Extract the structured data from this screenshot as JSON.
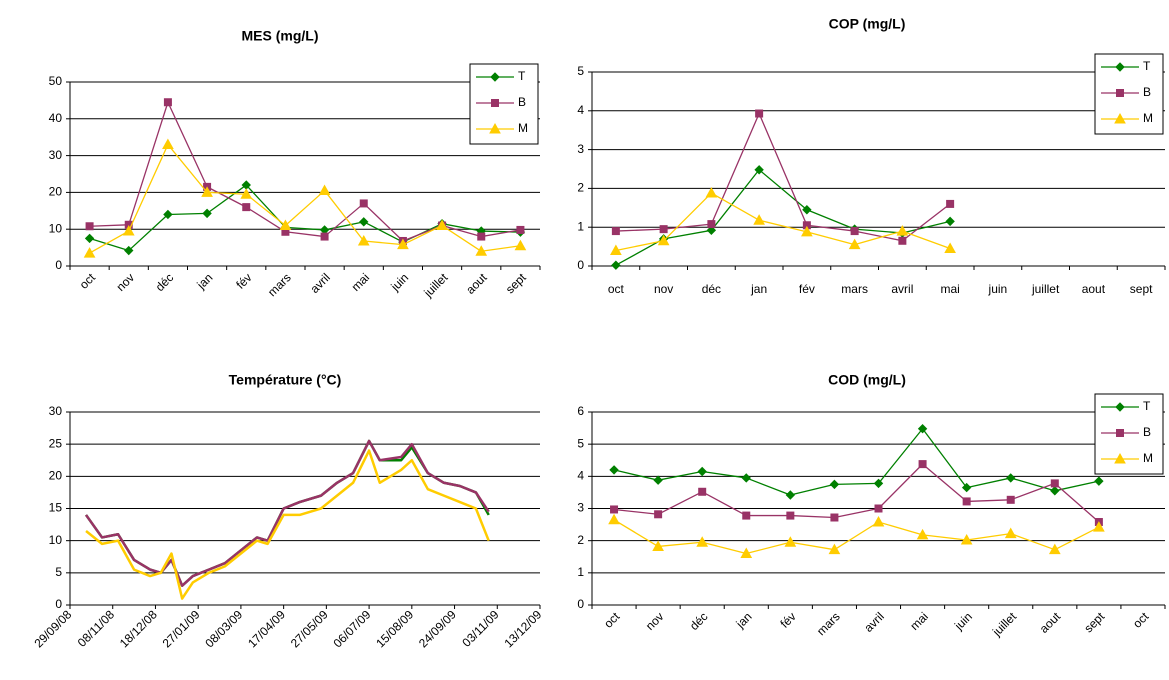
{
  "chart_data": [
    {
      "type": "line",
      "title": "MES (mg/L)",
      "categories": [
        "oct",
        "nov",
        "déc",
        "jan",
        "fév",
        "mars",
        "avril",
        "mai",
        "juin",
        "juillet",
        "aout",
        "sept"
      ],
      "series": [
        {
          "name": "T",
          "color": "#008000",
          "marker": "diamond",
          "values": [
            7.5,
            4.2,
            14,
            14.3,
            22,
            10.5,
            9.8,
            12,
            6.5,
            11.5,
            9.5,
            9.2
          ]
        },
        {
          "name": "B",
          "color": "#993366",
          "marker": "square",
          "values": [
            10.8,
            11.2,
            44.5,
            21.5,
            16,
            9.3,
            8,
            17,
            6.8,
            11,
            8,
            9.8
          ]
        },
        {
          "name": "M",
          "color": "#ffcc00",
          "marker": "triangle",
          "values": [
            3.5,
            9.5,
            33,
            20,
            19.5,
            11,
            20.5,
            6.8,
            5.8,
            11,
            4,
            5.5
          ]
        }
      ],
      "ylim": [
        0,
        50
      ],
      "yticks": [
        0,
        10,
        20,
        30,
        40,
        50
      ],
      "grid": true,
      "legend": "top-right",
      "rotate_x_labels": true
    },
    {
      "type": "line",
      "title": "COP (mg/L)",
      "categories": [
        "oct",
        "nov",
        "déc",
        "jan",
        "fév",
        "mars",
        "avril",
        "mai",
        "juin",
        "juillet",
        "aout",
        "sept"
      ],
      "series": [
        {
          "name": "T",
          "color": "#008000",
          "marker": "diamond",
          "values": [
            0.02,
            0.7,
            0.92,
            2.48,
            1.45,
            0.95,
            0.85,
            1.15,
            null,
            null,
            null,
            null
          ]
        },
        {
          "name": "B",
          "color": "#993366",
          "marker": "square",
          "values": [
            0.9,
            0.95,
            1.08,
            3.93,
            1.05,
            0.9,
            0.65,
            1.6,
            null,
            null,
            null,
            null
          ]
        },
        {
          "name": "M",
          "color": "#ffcc00",
          "marker": "triangle",
          "values": [
            0.4,
            0.65,
            1.88,
            1.18,
            0.88,
            0.55,
            0.9,
            0.45,
            null,
            null,
            null,
            null
          ]
        }
      ],
      "ylim": [
        0,
        5
      ],
      "yticks": [
        0,
        1,
        2,
        3,
        4,
        5
      ],
      "grid": true,
      "legend": "top-right",
      "rotate_x_labels": false
    },
    {
      "type": "line",
      "title": "Température (°C)",
      "x": [
        "2008-10-14",
        "2008-10-29",
        "2008-11-13",
        "2008-11-28",
        "2008-12-13",
        "2008-12-23",
        "2009-01-02",
        "2009-01-12",
        "2009-01-22",
        "2009-02-06",
        "2009-02-21",
        "2009-03-08",
        "2009-03-23",
        "2009-04-02",
        "2009-04-17",
        "2009-05-02",
        "2009-05-22",
        "2009-06-06",
        "2009-06-21",
        "2009-07-06",
        "2009-07-16",
        "2009-08-05",
        "2009-08-15",
        "2009-08-30",
        "2009-09-14",
        "2009-09-29",
        "2009-10-14",
        "2009-10-26"
      ],
      "series": [
        {
          "color": "#008000",
          "values": [
            14,
            10.5,
            11,
            7,
            5.5,
            5,
            7,
            3,
            4.5,
            5.5,
            6.5,
            8.5,
            10.5,
            10,
            15,
            16,
            17,
            19,
            20.5,
            25.5,
            22.5,
            22.5,
            24.5,
            20.5,
            19,
            18.5,
            17.5,
            14
          ]
        },
        {
          "color": "#993366",
          "values": [
            14,
            10.5,
            11,
            7,
            5.5,
            5,
            7,
            3,
            4.5,
            5.5,
            6.5,
            8.5,
            10.5,
            10,
            15,
            16,
            17,
            19,
            20.5,
            25.5,
            22.5,
            23,
            25,
            20.5,
            19,
            18.5,
            17.5,
            14.5
          ]
        },
        {
          "color": "#ffcc00",
          "values": [
            11.5,
            9.5,
            10,
            5.5,
            4.5,
            5,
            8,
            1,
            3.5,
            5,
            6,
            8,
            10,
            9.5,
            14,
            14,
            15,
            17,
            19,
            24,
            19,
            21,
            22.5,
            18,
            17,
            16,
            15,
            10
          ]
        }
      ],
      "xlim": [
        "2008-09-29",
        "2009-12-13"
      ],
      "xticks": [
        {
          "value": "2008-09-29",
          "label": "29/09/08"
        },
        {
          "value": "2008-11-08",
          "label": "08/11/08"
        },
        {
          "value": "2008-12-18",
          "label": "18/12/08"
        },
        {
          "value": "2009-01-27",
          "label": "27/01/09"
        },
        {
          "value": "2009-03-08",
          "label": "08/03/09"
        },
        {
          "value": "2009-04-17",
          "label": "17/04/09"
        },
        {
          "value": "2009-05-27",
          "label": "27/05/09"
        },
        {
          "value": "2009-07-06",
          "label": "06/07/09"
        },
        {
          "value": "2009-08-15",
          "label": "15/08/09"
        },
        {
          "value": "2009-09-24",
          "label": "24/09/09"
        },
        {
          "value": "2009-11-03",
          "label": "03/11/09"
        },
        {
          "value": "2009-12-13",
          "label": "13/12/09"
        }
      ],
      "ylim": [
        0,
        30
      ],
      "yticks": [
        0,
        5,
        10,
        15,
        20,
        25,
        30
      ],
      "grid": true,
      "rotate_x_labels": true
    },
    {
      "type": "line",
      "title": "COD (mg/L)",
      "categories": [
        "oct",
        "nov",
        "déc",
        "jan",
        "fév",
        "mars",
        "avril",
        "mai",
        "juin",
        "juillet",
        "aout",
        "sept",
        "oct"
      ],
      "series": [
        {
          "name": "T",
          "color": "#008000",
          "marker": "diamond",
          "values": [
            4.2,
            3.88,
            4.15,
            3.95,
            3.42,
            3.75,
            3.78,
            5.48,
            3.65,
            3.95,
            3.55,
            3.85,
            null
          ]
        },
        {
          "name": "B",
          "color": "#993366",
          "marker": "square",
          "values": [
            2.97,
            2.82,
            3.52,
            2.78,
            2.78,
            2.72,
            3.0,
            4.38,
            3.22,
            3.27,
            3.78,
            2.58,
            null
          ]
        },
        {
          "name": "M",
          "color": "#ffcc00",
          "marker": "triangle",
          "values": [
            2.65,
            1.82,
            1.95,
            1.6,
            1.95,
            1.72,
            2.58,
            2.18,
            2.02,
            2.22,
            1.72,
            2.42,
            null
          ]
        }
      ],
      "ylim": [
        0,
        6
      ],
      "yticks": [
        0,
        1,
        2,
        3,
        4,
        5,
        6
      ],
      "grid": true,
      "legend": "top-right",
      "rotate_x_labels": true
    }
  ]
}
